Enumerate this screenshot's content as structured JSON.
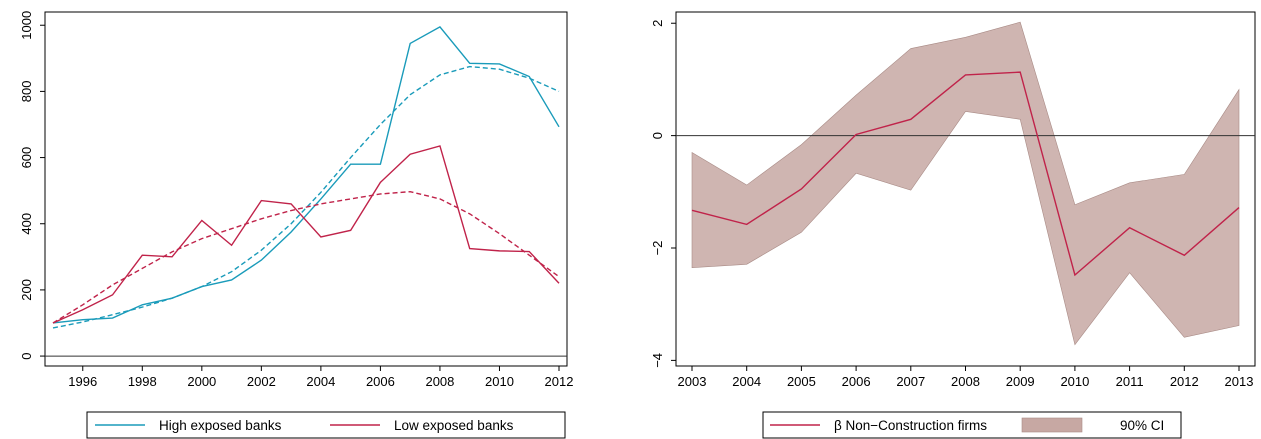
{
  "chart_data": [
    {
      "type": "line",
      "title": "",
      "xlabel": "",
      "ylabel": "",
      "xlim": [
        1995,
        2012
      ],
      "ylim": [
        -30,
        1040
      ],
      "x_ticks": [
        "1996",
        "1998",
        "2000",
        "2002",
        "2004",
        "2006",
        "2008",
        "2010",
        "2012"
      ],
      "y_ticks": [
        "0",
        "200",
        "400",
        "600",
        "800",
        "1000"
      ],
      "reference_line_y": 0,
      "legend_position": "bottom",
      "x": [
        1995,
        1996,
        1997,
        1998,
        1999,
        2000,
        2001,
        2002,
        2003,
        2004,
        2005,
        2006,
        2007,
        2008,
        2009,
        2010,
        2011,
        2012
      ],
      "series": [
        {
          "name": "High exposed banks",
          "color": "#1a9bba",
          "style": "solid",
          "values": [
            100,
            110,
            115,
            155,
            175,
            210,
            230,
            290,
            375,
            475,
            580,
            580,
            945,
            995,
            885,
            883,
            845,
            693
          ]
        },
        {
          "name": "",
          "color": "#1a9bba",
          "style": "dashed",
          "values": [
            85,
            103,
            125,
            148,
            175,
            210,
            255,
            320,
            400,
            495,
            600,
            700,
            790,
            850,
            875,
            867,
            840,
            800
          ]
        },
        {
          "name": "Low exposed banks",
          "color": "#c0234a",
          "style": "solid",
          "values": [
            100,
            140,
            185,
            305,
            300,
            410,
            335,
            470,
            460,
            360,
            380,
            525,
            610,
            635,
            325,
            318,
            316,
            220
          ]
        },
        {
          "name": "",
          "color": "#c0234a",
          "style": "dashed",
          "values": [
            100,
            155,
            215,
            265,
            315,
            355,
            385,
            415,
            440,
            460,
            475,
            490,
            497,
            475,
            430,
            370,
            305,
            240
          ]
        }
      ]
    },
    {
      "type": "line",
      "title": "",
      "xlabel": "",
      "ylabel": "",
      "xlim": [
        2003,
        2013
      ],
      "ylim": [
        -4.1,
        2.2
      ],
      "x_ticks": [
        "2003",
        "2004",
        "2005",
        "2006",
        "2007",
        "2008",
        "2009",
        "2010",
        "2011",
        "2012",
        "2013"
      ],
      "y_ticks": [
        "−4",
        "−2",
        "0",
        "2"
      ],
      "reference_line_y": 0,
      "legend_position": "bottom",
      "x": [
        2003,
        2004,
        2005,
        2006,
        2007,
        2008,
        2009,
        2010,
        2011,
        2012,
        2013
      ],
      "series": [
        {
          "name": "β Non−Construction firms",
          "color": "#c0234a",
          "style": "solid",
          "values": [
            -1.33,
            -1.58,
            -0.95,
            0.02,
            0.29,
            1.08,
            1.13,
            -2.48,
            -1.64,
            -2.13,
            -1.28
          ]
        }
      ],
      "band": {
        "name": "90% CI",
        "color": "#c7a8a3",
        "lower": [
          -2.35,
          -2.29,
          -1.72,
          -0.67,
          -0.97,
          0.43,
          0.29,
          -3.72,
          -2.44,
          -3.59,
          -3.38
        ],
        "upper": [
          -0.3,
          -0.88,
          -0.16,
          0.72,
          1.55,
          1.75,
          2.02,
          -1.23,
          -0.84,
          -0.69,
          0.82
        ]
      }
    }
  ]
}
